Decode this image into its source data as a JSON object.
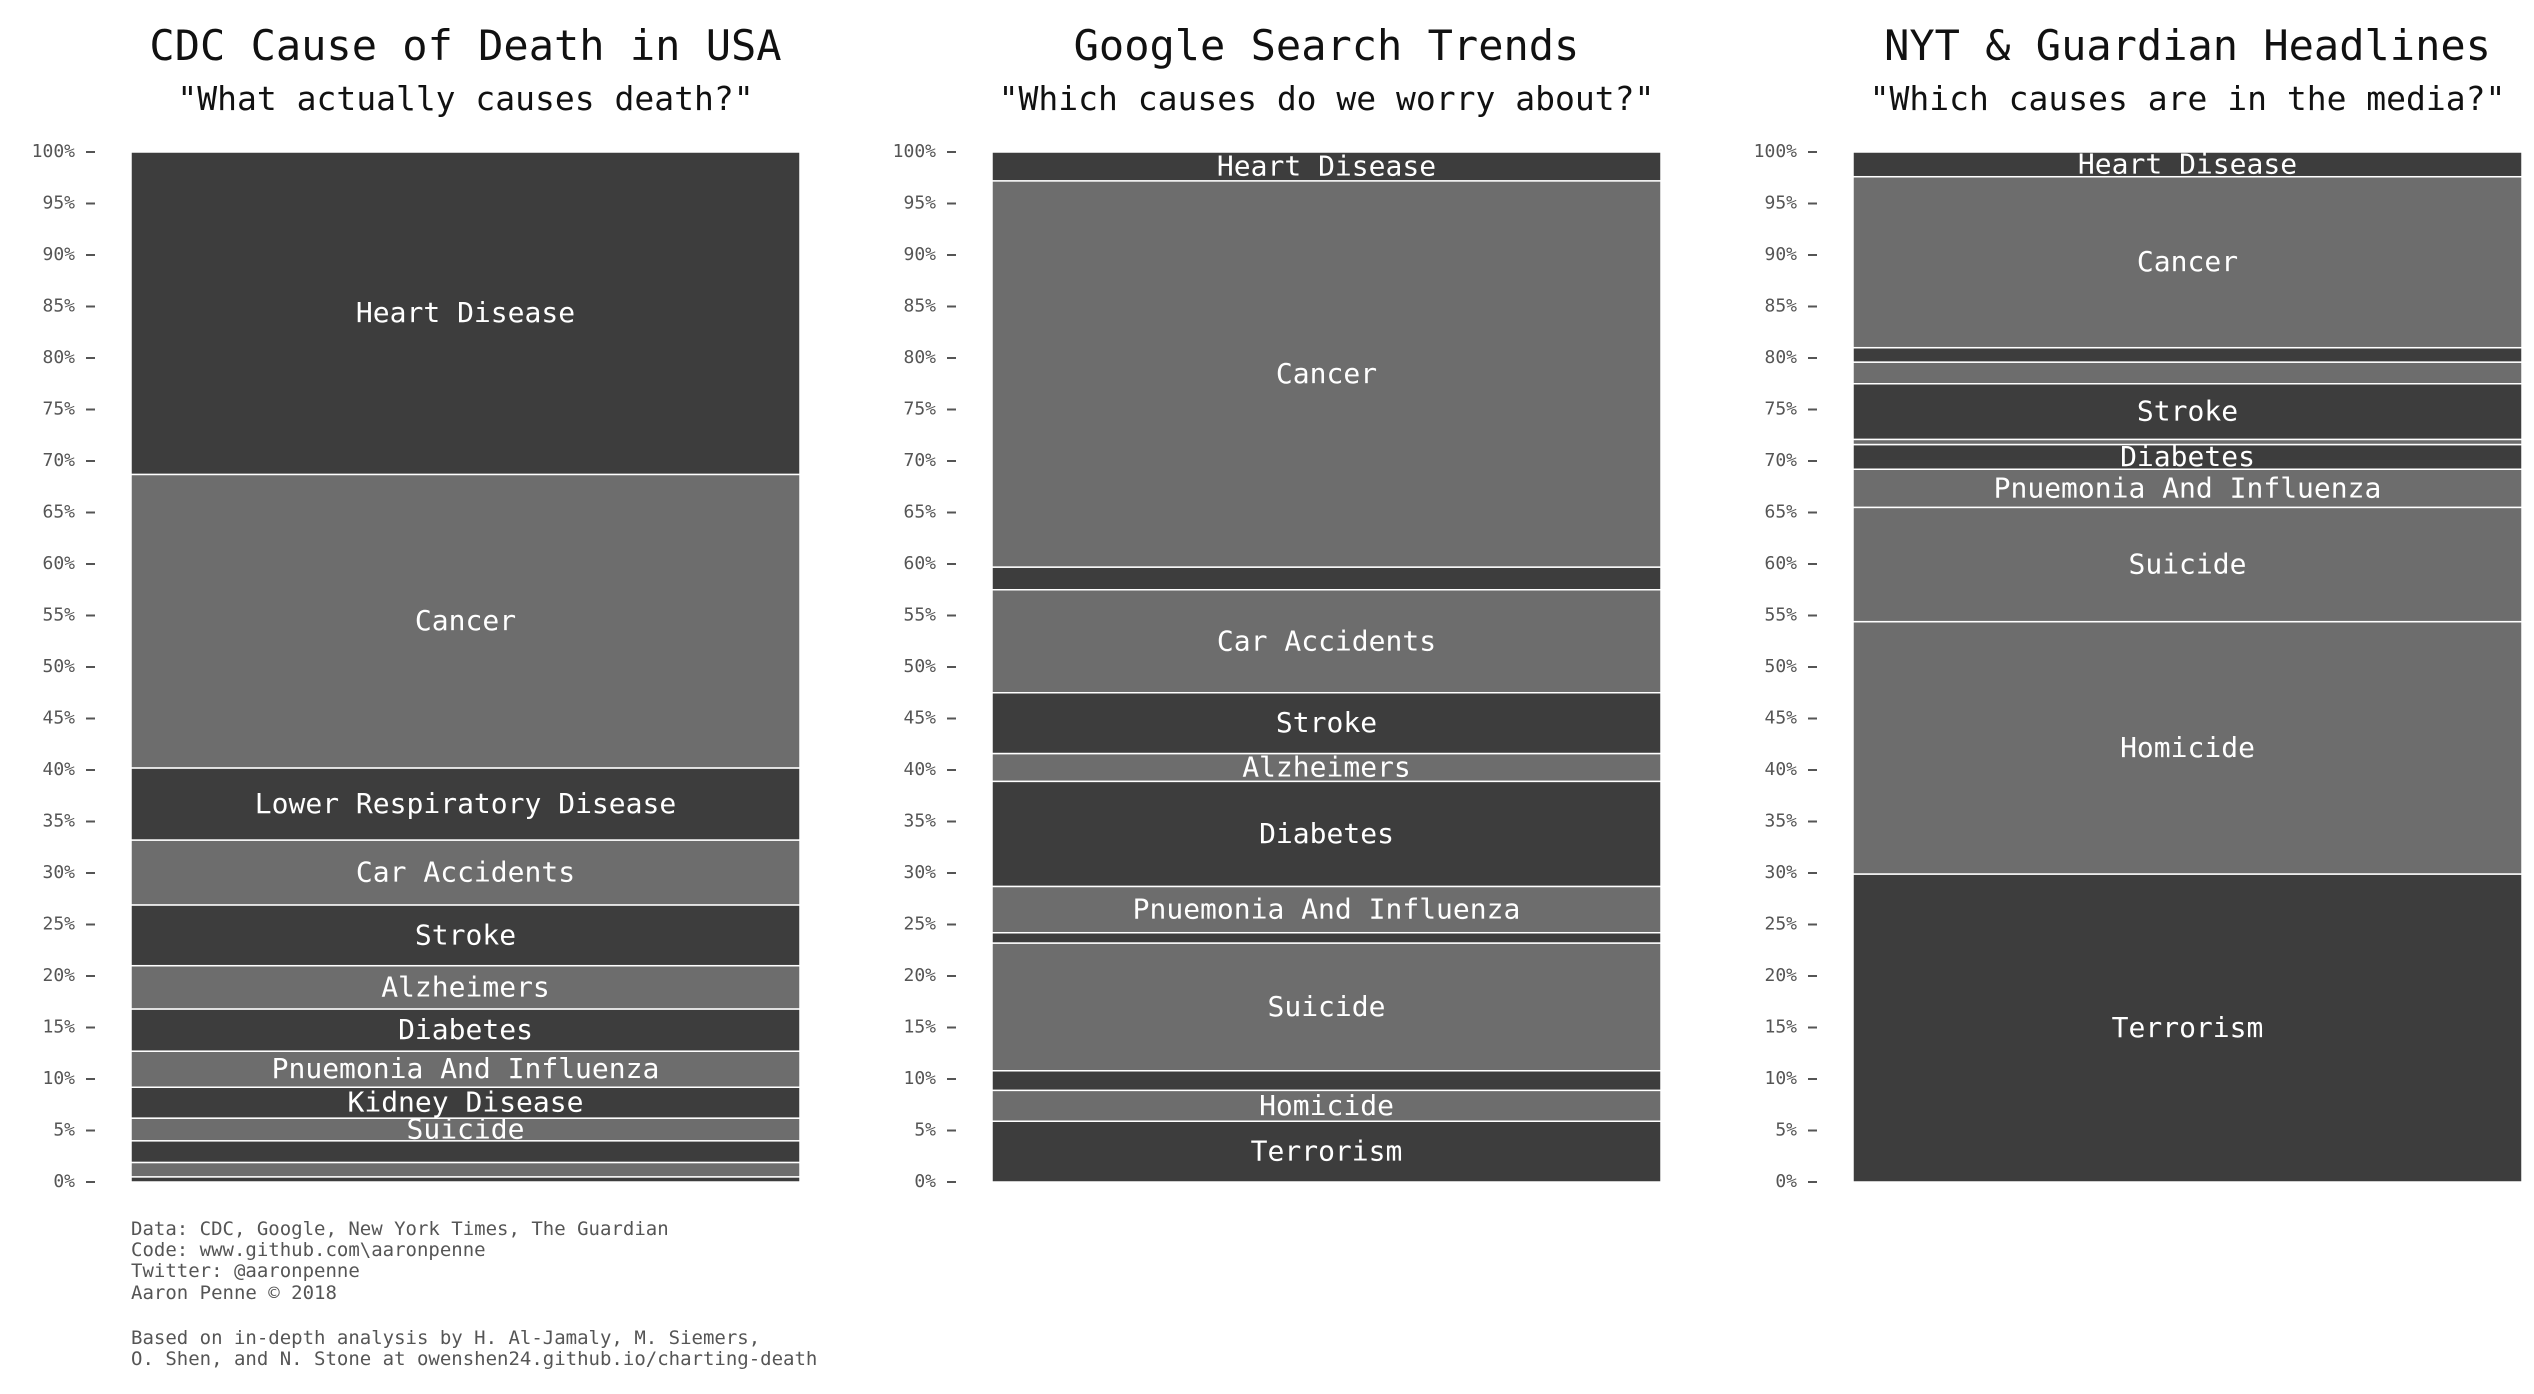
{
  "chart_data": [
    {
      "type": "stacked-bar",
      "title": "CDC Cause of Death in USA",
      "subtitle": "\"What actually causes death?\"",
      "categories": [
        null,
        null,
        null,
        "Suicide",
        "Kidney Disease",
        "Pnuemonia And Influenza",
        "Diabetes",
        "Alzheimers",
        "Stroke",
        "Car Accidents",
        "Lower Respiratory Disease",
        "Cancer",
        "Heart Disease"
      ],
      "values": [
        0.5,
        1.4,
        2.1,
        2.2,
        3.0,
        3.5,
        4.1,
        4.2,
        5.9,
        6.3,
        7.0,
        28.5,
        31.3
      ],
      "colors": [
        "#3d3d3d",
        "#6d6d6d",
        "#3d3d3d",
        "#6d6d6d",
        "#3d3d3d",
        "#6d6d6d",
        "#3d3d3d",
        "#6d6d6d",
        "#3d3d3d",
        "#6d6d6d",
        "#3d3d3d",
        "#6d6d6d",
        "#3d3d3d"
      ],
      "ylim": [
        0,
        100
      ],
      "yticks": [
        {
          "value": 0,
          "label": "0%"
        },
        {
          "value": 5,
          "label": "5%"
        },
        {
          "value": 10,
          "label": "10%"
        },
        {
          "value": 15,
          "label": "15%"
        },
        {
          "value": 20,
          "label": "20%"
        },
        {
          "value": 25,
          "label": "25%"
        },
        {
          "value": 30,
          "label": "30%"
        },
        {
          "value": 35,
          "label": "35%"
        },
        {
          "value": 40,
          "label": "40%"
        },
        {
          "value": 45,
          "label": "45%"
        },
        {
          "value": 50,
          "label": "50%"
        },
        {
          "value": 55,
          "label": "55%"
        },
        {
          "value": 60,
          "label": "60%"
        },
        {
          "value": 65,
          "label": "65%"
        },
        {
          "value": 70,
          "label": "70%"
        },
        {
          "value": 75,
          "label": "75%"
        },
        {
          "value": 80,
          "label": "80%"
        },
        {
          "value": 85,
          "label": "85%"
        },
        {
          "value": 90,
          "label": "90%"
        },
        {
          "value": 95,
          "label": "95%"
        },
        {
          "value": 100,
          "label": "100%"
        }
      ]
    },
    {
      "type": "stacked-bar",
      "title": "Google Search Trends",
      "subtitle": "\"Which causes do we worry about?\"",
      "categories": [
        "Terrorism",
        "Homicide",
        null,
        "Suicide",
        null,
        "Pnuemonia And Influenza",
        "Diabetes",
        "Alzheimers",
        "Stroke",
        "Car Accidents",
        null,
        "Cancer",
        "Heart Disease"
      ],
      "values": [
        5.9,
        3.0,
        1.9,
        12.4,
        1.0,
        4.5,
        10.2,
        2.7,
        5.9,
        10.0,
        2.2,
        37.5,
        2.8
      ],
      "colors": [
        "#3d3d3d",
        "#6d6d6d",
        "#3d3d3d",
        "#6d6d6d",
        "#3d3d3d",
        "#6d6d6d",
        "#3d3d3d",
        "#6d6d6d",
        "#3d3d3d",
        "#6d6d6d",
        "#3d3d3d",
        "#6d6d6d",
        "#3d3d3d"
      ],
      "ylim": [
        0,
        100
      ],
      "yticks": [
        {
          "value": 0,
          "label": "0%"
        },
        {
          "value": 5,
          "label": "5%"
        },
        {
          "value": 10,
          "label": "10%"
        },
        {
          "value": 15,
          "label": "15%"
        },
        {
          "value": 20,
          "label": "20%"
        },
        {
          "value": 25,
          "label": "25%"
        },
        {
          "value": 30,
          "label": "30%"
        },
        {
          "value": 35,
          "label": "35%"
        },
        {
          "value": 40,
          "label": "40%"
        },
        {
          "value": 45,
          "label": "45%"
        },
        {
          "value": 50,
          "label": "50%"
        },
        {
          "value": 55,
          "label": "55%"
        },
        {
          "value": 60,
          "label": "60%"
        },
        {
          "value": 65,
          "label": "65%"
        },
        {
          "value": 70,
          "label": "70%"
        },
        {
          "value": 75,
          "label": "75%"
        },
        {
          "value": 80,
          "label": "80%"
        },
        {
          "value": 85,
          "label": "85%"
        },
        {
          "value": 90,
          "label": "90%"
        },
        {
          "value": 95,
          "label": "95%"
        },
        {
          "value": 100,
          "label": "100%"
        }
      ]
    },
    {
      "type": "stacked-bar",
      "title": "NYT & Guardian Headlines",
      "subtitle": "\"Which causes are in the media?\"",
      "categories": [
        "Terrorism",
        "Homicide",
        "Suicide",
        "Pnuemonia And Influenza",
        "Diabetes",
        null,
        "Stroke",
        null,
        null,
        "Cancer",
        "Heart Disease"
      ],
      "values": [
        29.9,
        24.5,
        11.1,
        3.7,
        2.4,
        0.5,
        5.4,
        2.1,
        1.4,
        16.6,
        2.4
      ],
      "colors": [
        "#3d3d3d",
        "#6d6d6d",
        "#6d6d6d",
        "#6d6d6d",
        "#3d3d3d",
        "#6d6d6d",
        "#3d3d3d",
        "#6d6d6d",
        "#3d3d3d",
        "#6d6d6d",
        "#3d3d3d"
      ],
      "ylim": [
        0,
        100
      ],
      "yticks": [
        {
          "value": 0,
          "label": "0%"
        },
        {
          "value": 5,
          "label": "5%"
        },
        {
          "value": 10,
          "label": "10%"
        },
        {
          "value": 15,
          "label": "15%"
        },
        {
          "value": 20,
          "label": "20%"
        },
        {
          "value": 25,
          "label": "25%"
        },
        {
          "value": 30,
          "label": "30%"
        },
        {
          "value": 35,
          "label": "35%"
        },
        {
          "value": 40,
          "label": "40%"
        },
        {
          "value": 45,
          "label": "45%"
        },
        {
          "value": 50,
          "label": "50%"
        },
        {
          "value": 55,
          "label": "55%"
        },
        {
          "value": 60,
          "label": "60%"
        },
        {
          "value": 65,
          "label": "65%"
        },
        {
          "value": 70,
          "label": "70%"
        },
        {
          "value": 75,
          "label": "75%"
        },
        {
          "value": 80,
          "label": "80%"
        },
        {
          "value": 85,
          "label": "85%"
        },
        {
          "value": 90,
          "label": "90%"
        },
        {
          "value": 95,
          "label": "95%"
        },
        {
          "value": 100,
          "label": "100%"
        }
      ]
    }
  ],
  "notes": [
    "Data: CDC, Google, New York Times, The Guardian",
    "Code: www.github.com\\aaronpenne",
    "Twitter: @aaronpenne",
    "Aaron Penne © 2018",
    "Based on in-depth analysis by H. Al-Jamaly, M. Siemers,",
    "O. Shen, and N. Stone at owenshen24.github.io/charting-death"
  ]
}
